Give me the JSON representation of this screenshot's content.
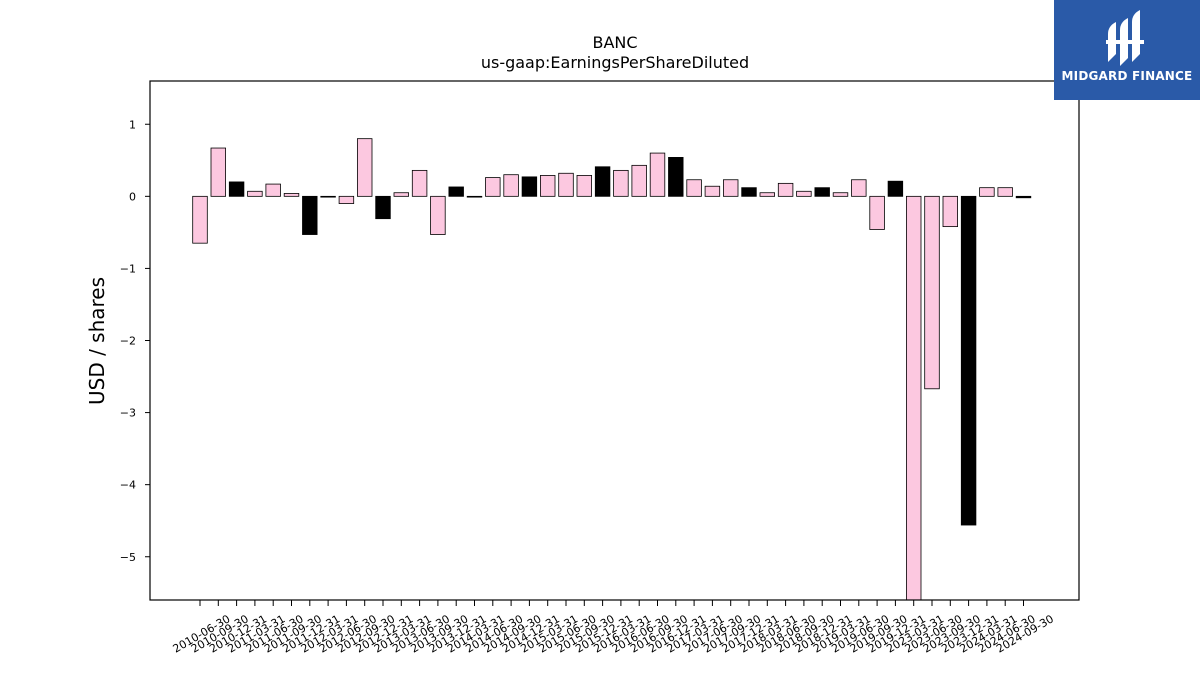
{
  "chart_data": {
    "type": "bar",
    "title": "BANC",
    "subtitle": "us-gaap:EarningsPerShareDiluted",
    "ylabel": "USD / shares",
    "xlabel": "",
    "ylim": [
      -5.6,
      1.6
    ],
    "yticks": [
      1,
      0,
      -1,
      -2,
      -3,
      -4,
      -5
    ],
    "ytick_labels": [
      "1",
      "0",
      "−1",
      "−2",
      "−3",
      "−4",
      "−5"
    ],
    "categories": [
      "2010-06-30",
      "2010-09-30",
      "2010-12-31",
      "2011-03-31",
      "2011-06-30",
      "2011-09-30",
      "2011-12-31",
      "2012-03-31",
      "2012-06-30",
      "2012-09-30",
      "2012-12-31",
      "2013-03-31",
      "2013-06-30",
      "2013-09-30",
      "2013-12-31",
      "2014-03-31",
      "2014-06-30",
      "2014-09-30",
      "2014-12-31",
      "2015-03-31",
      "2015-06-30",
      "2015-09-30",
      "2015-12-31",
      "2016-03-31",
      "2016-06-30",
      "2016-09-30",
      "2016-12-31",
      "2017-03-31",
      "2017-06-30",
      "2017-09-30",
      "2017-12-31",
      "2018-03-31",
      "2018-06-30",
      "2018-09-30",
      "2018-12-31",
      "2019-03-31",
      "2019-06-30",
      "2019-09-30",
      "2019-12-31",
      "2023-03-31",
      "2023-06-30",
      "2023-09-30",
      "2023-12-31",
      "2024-03-31",
      "2024-06-30",
      "2024-09-30"
    ],
    "values": [
      -0.65,
      0.67,
      0.2,
      0.07,
      0.17,
      0.04,
      -0.53,
      0.0,
      -0.1,
      0.8,
      -0.31,
      0.05,
      0.36,
      -0.53,
      0.13,
      -0.01,
      0.26,
      0.3,
      0.27,
      0.29,
      0.32,
      0.29,
      0.41,
      0.36,
      0.43,
      0.6,
      0.54,
      0.23,
      0.14,
      0.23,
      0.12,
      0.05,
      0.18,
      0.07,
      0.12,
      0.05,
      0.23,
      -0.46,
      0.21,
      -5.6,
      -2.67,
      -0.42,
      -4.56,
      0.12,
      0.12,
      -0.02
    ],
    "bar_colors": [
      "#fcc8e0",
      "#fcc8e0",
      "#000000",
      "#fcc8e0",
      "#fcc8e0",
      "#fcc8e0",
      "#000000",
      "#fcc8e0",
      "#fcc8e0",
      "#fcc8e0",
      "#000000",
      "#fcc8e0",
      "#fcc8e0",
      "#fcc8e0",
      "#000000",
      "#000000",
      "#fcc8e0",
      "#fcc8e0",
      "#000000",
      "#fcc8e0",
      "#fcc8e0",
      "#fcc8e0",
      "#000000",
      "#fcc8e0",
      "#fcc8e0",
      "#fcc8e0",
      "#000000",
      "#fcc8e0",
      "#fcc8e0",
      "#fcc8e0",
      "#000000",
      "#fcc8e0",
      "#fcc8e0",
      "#fcc8e0",
      "#000000",
      "#fcc8e0",
      "#fcc8e0",
      "#fcc8e0",
      "#000000",
      "#fcc8e0",
      "#fcc8e0",
      "#fcc8e0",
      "#000000",
      "#fcc8e0",
      "#fcc8e0",
      "#000000"
    ],
    "grid": false,
    "legend": "none"
  },
  "logo": {
    "text": "MIDGARD FINANCE",
    "icon": "midgard-finance-logo-icon",
    "background": "#2a5aa8"
  }
}
